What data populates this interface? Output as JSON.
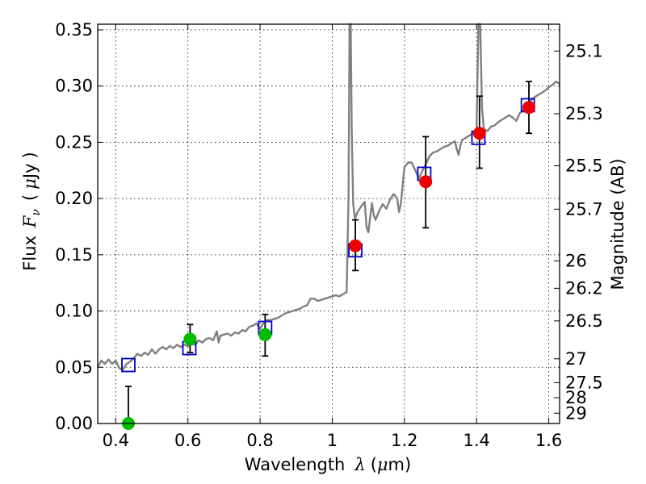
{
  "chart_data": {
    "type": "scatter",
    "xlabel_prefix": "Wavelength",
    "xlabel_symbol": "λ",
    "xlabel_units_open": "(",
    "xlabel_units_mu": "μ",
    "xlabel_units_rest": "m)",
    "ylabel_prefix": "Flux",
    "ylabel_symbol": "F",
    "ylabel_subscript": "ν",
    "ylabel_units_open": "(",
    "ylabel_units_mu": "μ",
    "ylabel_units_rest": "Jy",
    "ylabel_units_close": ")",
    "y2label": "Magnitude (AB)",
    "xlim": [
      0.35,
      1.63
    ],
    "ylim": [
      0.0,
      0.355
    ],
    "x_ticks": [
      0.4,
      0.6,
      0.8,
      1.0,
      1.2,
      1.4,
      1.6
    ],
    "x_tick_labels": [
      "0.4",
      "0.6",
      "0.8",
      "1",
      "1.2",
      "1.4",
      "1.6"
    ],
    "y_ticks": [
      0.0,
      0.05,
      0.1,
      0.15,
      0.2,
      0.25,
      0.3,
      0.35
    ],
    "y_tick_labels": [
      "0.00",
      "0.05",
      "0.10",
      "0.15",
      "0.20",
      "0.25",
      "0.30",
      "0.35"
    ],
    "y2_ticks": [
      {
        "label": "25.1",
        "mag": 25.1
      },
      {
        "label": "25.3",
        "mag": 25.3
      },
      {
        "label": "25.5",
        "mag": 25.5
      },
      {
        "label": "25.7",
        "mag": 25.7
      },
      {
        "label": "26",
        "mag": 26.0
      },
      {
        "label": "26.2",
        "mag": 26.2
      },
      {
        "label": "26.5",
        "mag": 26.5
      },
      {
        "label": "27",
        "mag": 27.0
      },
      {
        "label": "27.5",
        "mag": 27.5
      },
      {
        "label": "28",
        "mag": 28.0
      },
      {
        "label": "29",
        "mag": 29.0
      }
    ],
    "grid": true,
    "colors": {
      "model": "#808080",
      "model_points": "#0000cc",
      "optical": "#00bb00",
      "nir": "#ee0000",
      "errorbar": "#000000"
    },
    "model_spectrum": [
      [
        0.35,
        0.05
      ],
      [
        0.36,
        0.056
      ],
      [
        0.37,
        0.053
      ],
      [
        0.38,
        0.057
      ],
      [
        0.39,
        0.053
      ],
      [
        0.4,
        0.056
      ],
      [
        0.41,
        0.049
      ],
      [
        0.42,
        0.048
      ],
      [
        0.43,
        0.053
      ],
      [
        0.44,
        0.055
      ],
      [
        0.45,
        0.058
      ],
      [
        0.46,
        0.062
      ],
      [
        0.47,
        0.06
      ],
      [
        0.48,
        0.063
      ],
      [
        0.49,
        0.061
      ],
      [
        0.5,
        0.066
      ],
      [
        0.51,
        0.062
      ],
      [
        0.52,
        0.066
      ],
      [
        0.53,
        0.068
      ],
      [
        0.54,
        0.066
      ],
      [
        0.55,
        0.069
      ],
      [
        0.56,
        0.067
      ],
      [
        0.57,
        0.07
      ],
      [
        0.58,
        0.068
      ],
      [
        0.59,
        0.07
      ],
      [
        0.6,
        0.069
      ],
      [
        0.61,
        0.071
      ],
      [
        0.62,
        0.07
      ],
      [
        0.63,
        0.074
      ],
      [
        0.64,
        0.072
      ],
      [
        0.65,
        0.075
      ],
      [
        0.66,
        0.076
      ],
      [
        0.67,
        0.074
      ],
      [
        0.68,
        0.082
      ],
      [
        0.685,
        0.072
      ],
      [
        0.69,
        0.078
      ],
      [
        0.7,
        0.079
      ],
      [
        0.71,
        0.08
      ],
      [
        0.72,
        0.078
      ],
      [
        0.73,
        0.081
      ],
      [
        0.74,
        0.08
      ],
      [
        0.75,
        0.083
      ],
      [
        0.76,
        0.082
      ],
      [
        0.77,
        0.086
      ],
      [
        0.78,
        0.087
      ],
      [
        0.79,
        0.089
      ],
      [
        0.8,
        0.084
      ],
      [
        0.81,
        0.09
      ],
      [
        0.82,
        0.092
      ],
      [
        0.83,
        0.092
      ],
      [
        0.84,
        0.093
      ],
      [
        0.85,
        0.094
      ],
      [
        0.86,
        0.096
      ],
      [
        0.87,
        0.098
      ],
      [
        0.88,
        0.099
      ],
      [
        0.89,
        0.1
      ],
      [
        0.9,
        0.101
      ],
      [
        0.91,
        0.102
      ],
      [
        0.92,
        0.104
      ],
      [
        0.93,
        0.105
      ],
      [
        0.94,
        0.111
      ],
      [
        0.95,
        0.111
      ],
      [
        0.96,
        0.109
      ],
      [
        0.97,
        0.11
      ],
      [
        0.98,
        0.111
      ],
      [
        0.99,
        0.112
      ],
      [
        1.0,
        0.113
      ],
      [
        1.01,
        0.114
      ],
      [
        1.02,
        0.113
      ],
      [
        1.03,
        0.115
      ],
      [
        1.04,
        0.117
      ],
      [
        1.045,
        0.2
      ],
      [
        1.048,
        0.36
      ],
      [
        1.051,
        0.36
      ],
      [
        1.054,
        0.26
      ],
      [
        1.058,
        0.195
      ],
      [
        1.063,
        0.182
      ],
      [
        1.07,
        0.188
      ],
      [
        1.08,
        0.193
      ],
      [
        1.09,
        0.197
      ],
      [
        1.095,
        0.175
      ],
      [
        1.1,
        0.17
      ],
      [
        1.105,
        0.183
      ],
      [
        1.11,
        0.196
      ],
      [
        1.115,
        0.185
      ],
      [
        1.12,
        0.181
      ],
      [
        1.13,
        0.189
      ],
      [
        1.14,
        0.195
      ],
      [
        1.15,
        0.191
      ],
      [
        1.16,
        0.199
      ],
      [
        1.17,
        0.204
      ],
      [
        1.18,
        0.2
      ],
      [
        1.185,
        0.188
      ],
      [
        1.19,
        0.195
      ],
      [
        1.2,
        0.228
      ],
      [
        1.21,
        0.232
      ],
      [
        1.22,
        0.232
      ],
      [
        1.23,
        0.225
      ],
      [
        1.24,
        0.218
      ],
      [
        1.25,
        0.225
      ],
      [
        1.26,
        0.231
      ],
      [
        1.27,
        0.238
      ],
      [
        1.28,
        0.241
      ],
      [
        1.29,
        0.242
      ],
      [
        1.3,
        0.244
      ],
      [
        1.31,
        0.246
      ],
      [
        1.32,
        0.247
      ],
      [
        1.33,
        0.249
      ],
      [
        1.34,
        0.251
      ],
      [
        1.345,
        0.244
      ],
      [
        1.35,
        0.239
      ],
      [
        1.355,
        0.247
      ],
      [
        1.36,
        0.252
      ],
      [
        1.37,
        0.254
      ],
      [
        1.38,
        0.256
      ],
      [
        1.39,
        0.258
      ],
      [
        1.4,
        0.262
      ],
      [
        1.405,
        0.36
      ],
      [
        1.41,
        0.36
      ],
      [
        1.415,
        0.28
      ],
      [
        1.42,
        0.262
      ],
      [
        1.43,
        0.26
      ],
      [
        1.44,
        0.264
      ],
      [
        1.45,
        0.265
      ],
      [
        1.46,
        0.268
      ],
      [
        1.47,
        0.27
      ],
      [
        1.48,
        0.272
      ],
      [
        1.49,
        0.274
      ],
      [
        1.5,
        0.272
      ],
      [
        1.51,
        0.269
      ],
      [
        1.52,
        0.276
      ],
      [
        1.53,
        0.279
      ],
      [
        1.54,
        0.283
      ],
      [
        1.55,
        0.287
      ],
      [
        1.56,
        0.29
      ],
      [
        1.57,
        0.292
      ],
      [
        1.58,
        0.294
      ],
      [
        1.59,
        0.296
      ],
      [
        1.6,
        0.299
      ],
      [
        1.61,
        0.301
      ],
      [
        1.62,
        0.304
      ],
      [
        1.63,
        0.302
      ]
    ],
    "model_points": [
      {
        "x": 0.435,
        "y": 0.052
      },
      {
        "x": 0.604,
        "y": 0.067
      },
      {
        "x": 0.814,
        "y": 0.085
      },
      {
        "x": 1.064,
        "y": 0.154
      },
      {
        "x": 1.255,
        "y": 0.222
      },
      {
        "x": 1.405,
        "y": 0.254
      },
      {
        "x": 1.542,
        "y": 0.283
      }
    ],
    "observed": [
      {
        "x": 0.435,
        "y": 0.0,
        "ylo": 0.0,
        "yhi": 0.033,
        "band": "optical"
      },
      {
        "x": 0.606,
        "y": 0.075,
        "ylo": 0.063,
        "yhi": 0.088,
        "band": "optical"
      },
      {
        "x": 0.814,
        "y": 0.079,
        "ylo": 0.06,
        "yhi": 0.097,
        "band": "optical"
      },
      {
        "x": 1.064,
        "y": 0.158,
        "ylo": 0.136,
        "yhi": 0.181,
        "band": "nir"
      },
      {
        "x": 1.259,
        "y": 0.215,
        "ylo": 0.174,
        "yhi": 0.255,
        "band": "nir"
      },
      {
        "x": 1.408,
        "y": 0.258,
        "ylo": 0.227,
        "yhi": 0.291,
        "band": "nir"
      },
      {
        "x": 1.545,
        "y": 0.281,
        "ylo": 0.258,
        "yhi": 0.304,
        "band": "nir"
      }
    ]
  }
}
